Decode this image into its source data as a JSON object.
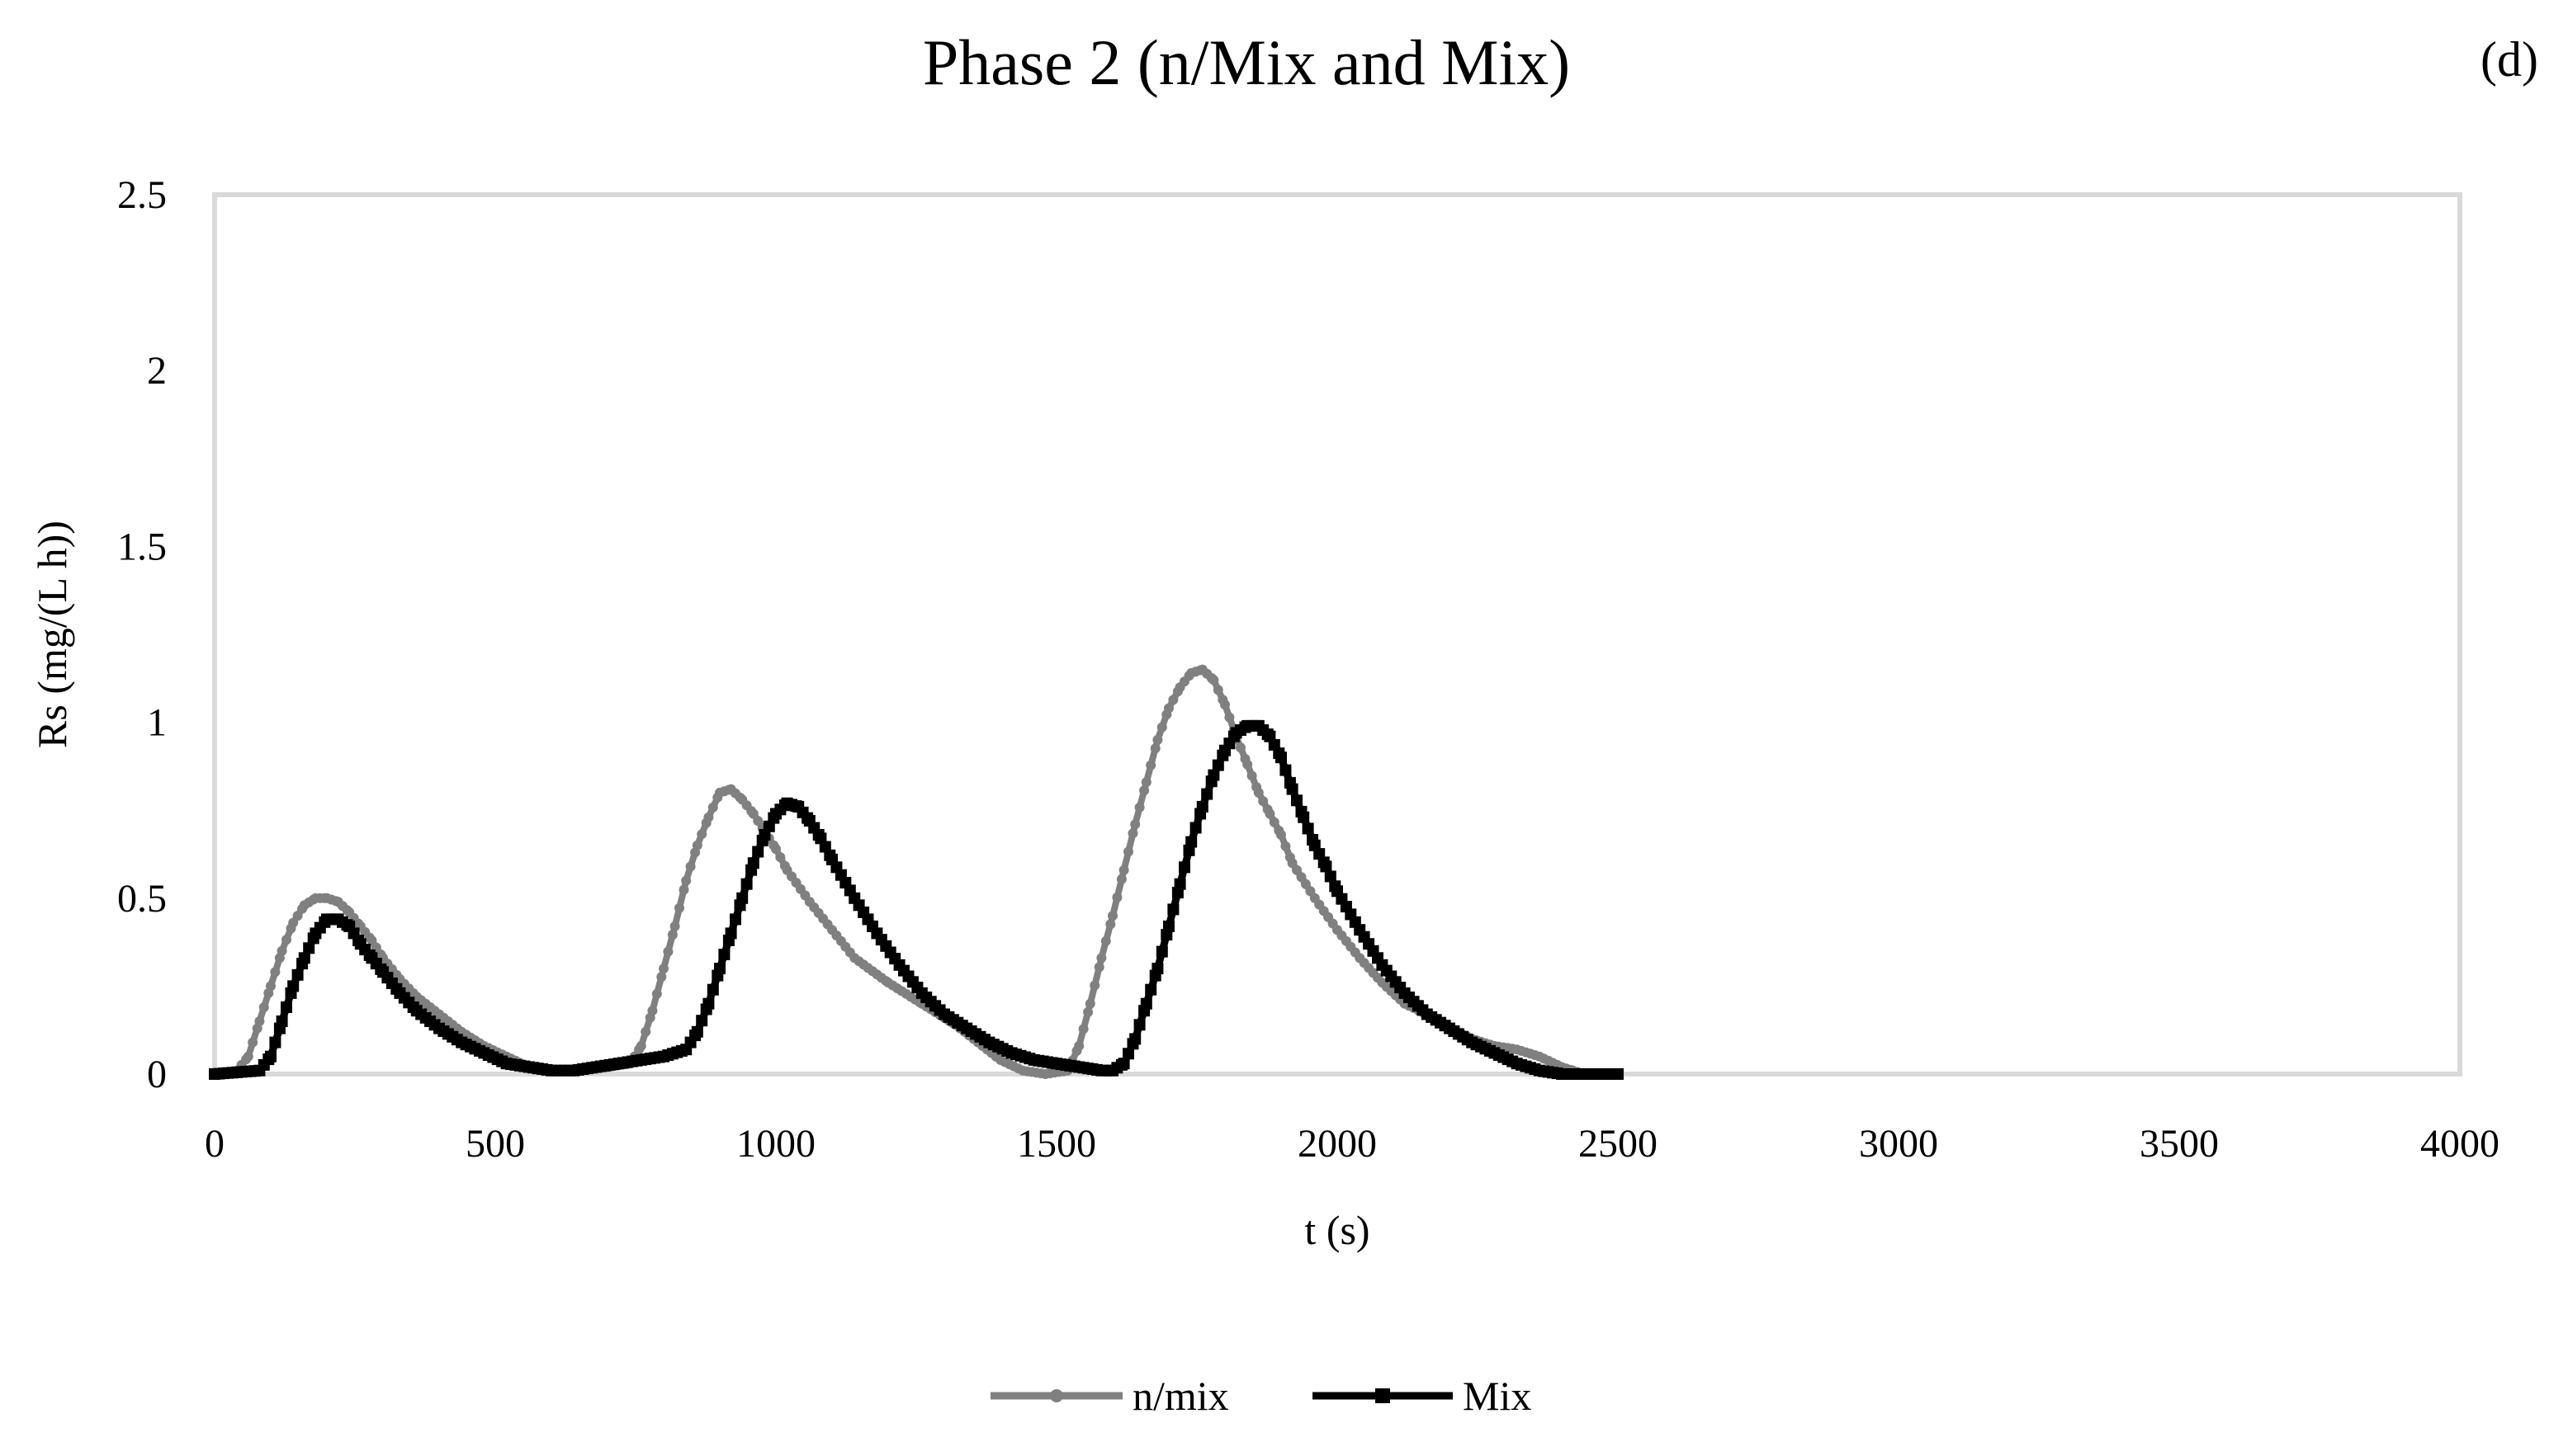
{
  "chart_data": {
    "type": "line",
    "title": "Phase 2 (n/Mix and Mix)",
    "panel_tag": "(d)",
    "xlabel": "t (s)",
    "ylabel": "Rs (mg/(L h))",
    "xlim": [
      0,
      4000
    ],
    "ylim": [
      0,
      2.5
    ],
    "xticks": [
      0,
      500,
      1000,
      1500,
      2000,
      2500,
      3000,
      3500,
      4000
    ],
    "yticks": [
      0,
      0.5,
      1,
      1.5,
      2,
      2.5
    ],
    "xtick_labels": [
      "0",
      "500",
      "1000",
      "1500",
      "2000",
      "2500",
      "3000",
      "3500",
      "4000"
    ],
    "ytick_labels": [
      "0",
      "0.5",
      "1",
      "1.5",
      "2",
      "2.5"
    ],
    "grid": false,
    "legend_position": "bottom-center",
    "series": [
      {
        "name": "n/mix",
        "color": "#808080",
        "marker": "circle",
        "x": [
          0,
          40,
          60,
          80,
          100,
          120,
          140,
          160,
          180,
          200,
          220,
          240,
          260,
          280,
          300,
          330,
          360,
          400,
          440,
          480,
          520,
          560,
          600,
          650,
          700,
          740,
          760,
          780,
          800,
          820,
          840,
          860,
          880,
          900,
          920,
          940,
          960,
          980,
          1000,
          1020,
          1060,
          1100,
          1140,
          1200,
          1260,
          1320,
          1360,
          1400,
          1440,
          1480,
          1520,
          1540,
          1560,
          1580,
          1600,
          1620,
          1640,
          1660,
          1680,
          1700,
          1720,
          1740,
          1760,
          1780,
          1800,
          1820,
          1840,
          1860,
          1880,
          1900,
          1920,
          1960,
          2000,
          2040,
          2080,
          2120,
          2160,
          2200,
          2240,
          2280,
          2320,
          2360,
          2400,
          2420,
          2440
        ],
        "y": [
          0,
          0.01,
          0.05,
          0.15,
          0.25,
          0.35,
          0.43,
          0.48,
          0.5,
          0.5,
          0.49,
          0.46,
          0.42,
          0.38,
          0.33,
          0.27,
          0.22,
          0.17,
          0.12,
          0.08,
          0.05,
          0.02,
          0.01,
          0.01,
          0.02,
          0.03,
          0.08,
          0.18,
          0.3,
          0.42,
          0.55,
          0.65,
          0.73,
          0.8,
          0.81,
          0.78,
          0.74,
          0.69,
          0.64,
          0.58,
          0.49,
          0.41,
          0.33,
          0.26,
          0.2,
          0.14,
          0.09,
          0.04,
          0.01,
          0.0,
          0.01,
          0.08,
          0.2,
          0.33,
          0.45,
          0.58,
          0.71,
          0.83,
          0.95,
          1.04,
          1.1,
          1.14,
          1.15,
          1.12,
          1.05,
          0.96,
          0.88,
          0.8,
          0.74,
          0.68,
          0.6,
          0.5,
          0.41,
          0.33,
          0.26,
          0.2,
          0.17,
          0.13,
          0.1,
          0.08,
          0.07,
          0.05,
          0.02,
          0.01,
          0.0
        ]
      },
      {
        "name": "Mix",
        "color": "#000000",
        "marker": "square",
        "x": [
          0,
          80,
          100,
          120,
          140,
          160,
          180,
          200,
          220,
          240,
          260,
          280,
          300,
          330,
          360,
          400,
          440,
          480,
          520,
          560,
          600,
          640,
          680,
          720,
          760,
          800,
          840,
          860,
          880,
          900,
          920,
          940,
          960,
          980,
          1000,
          1020,
          1040,
          1060,
          1080,
          1100,
          1140,
          1180,
          1220,
          1260,
          1300,
          1340,
          1380,
          1420,
          1460,
          1500,
          1540,
          1580,
          1600,
          1620,
          1640,
          1660,
          1680,
          1700,
          1720,
          1740,
          1760,
          1780,
          1800,
          1820,
          1840,
          1860,
          1880,
          1900,
          1920,
          1940,
          1960,
          1980,
          2000,
          2040,
          2080,
          2120,
          2160,
          2200,
          2240,
          2280,
          2320,
          2360,
          2400,
          2440,
          2480,
          2500
        ],
        "y": [
          0,
          0.01,
          0.05,
          0.15,
          0.25,
          0.33,
          0.4,
          0.44,
          0.44,
          0.42,
          0.37,
          0.33,
          0.29,
          0.23,
          0.18,
          0.13,
          0.09,
          0.06,
          0.03,
          0.02,
          0.01,
          0.01,
          0.02,
          0.03,
          0.04,
          0.05,
          0.07,
          0.12,
          0.2,
          0.3,
          0.4,
          0.5,
          0.6,
          0.68,
          0.74,
          0.77,
          0.76,
          0.72,
          0.67,
          0.61,
          0.5,
          0.4,
          0.31,
          0.23,
          0.17,
          0.13,
          0.09,
          0.06,
          0.04,
          0.03,
          0.02,
          0.01,
          0.01,
          0.03,
          0.1,
          0.2,
          0.3,
          0.42,
          0.54,
          0.66,
          0.76,
          0.85,
          0.92,
          0.97,
          0.99,
          0.99,
          0.96,
          0.9,
          0.81,
          0.73,
          0.65,
          0.59,
          0.52,
          0.41,
          0.31,
          0.23,
          0.17,
          0.13,
          0.09,
          0.06,
          0.03,
          0.01,
          0.0,
          0.0,
          0.0,
          0.0
        ]
      }
    ]
  }
}
